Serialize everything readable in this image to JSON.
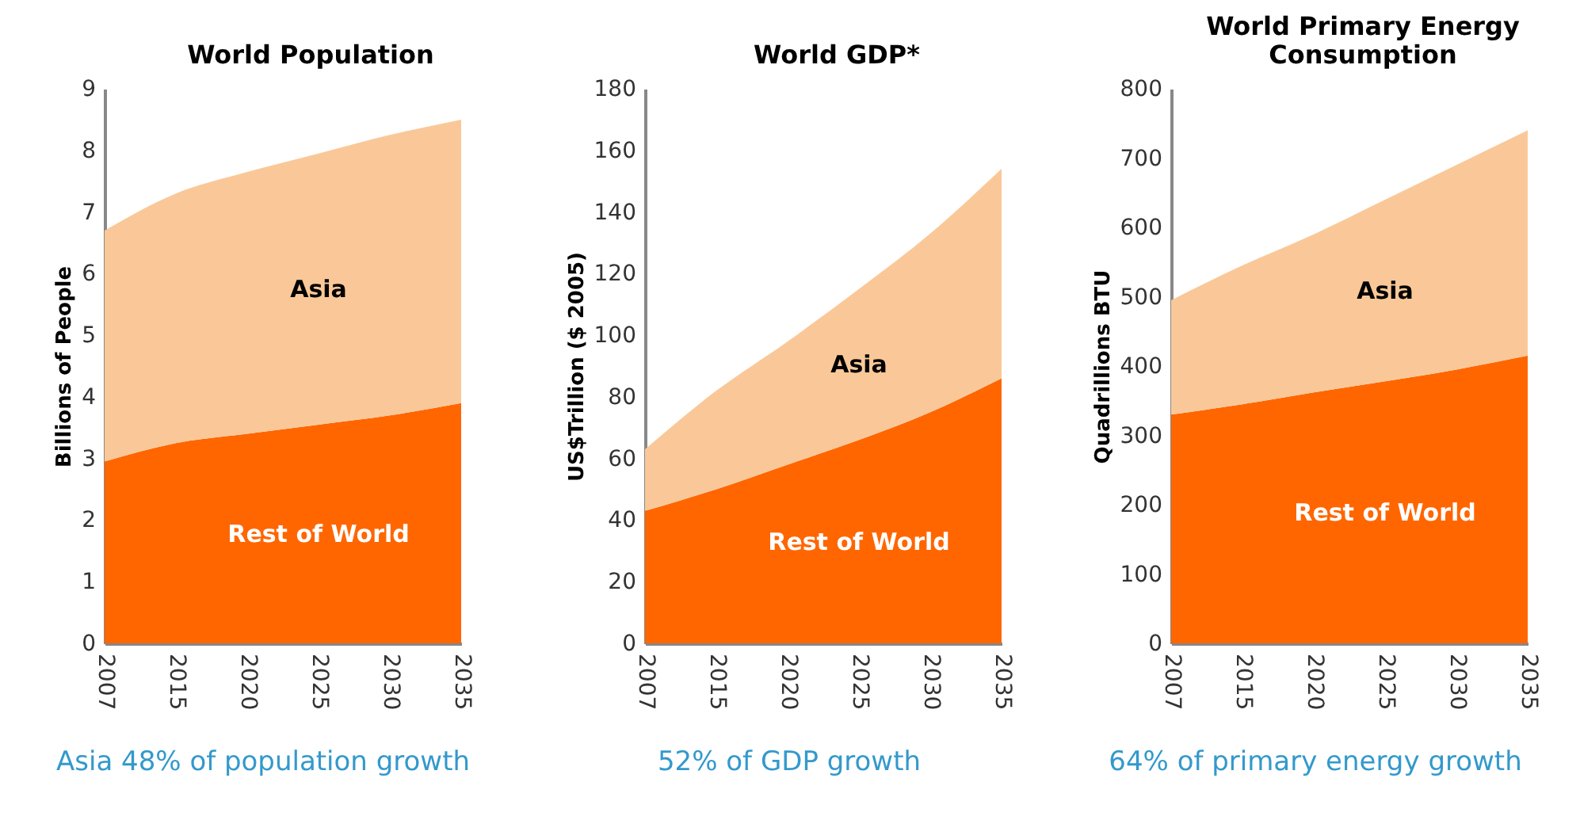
{
  "chart_data": [
    {
      "type": "area",
      "title": "World Population",
      "ylabel": "Billions of People",
      "categories": [
        "2007",
        "2015",
        "2020",
        "2025",
        "2030",
        "2035"
      ],
      "stacked": true,
      "ylim": [
        0,
        9
      ],
      "yticks": [
        0,
        1,
        2,
        3,
        4,
        5,
        6,
        7,
        8,
        9
      ],
      "grid": false,
      "annotations": [
        "Asia 48% of population growth"
      ],
      "series": [
        {
          "name": "Rest of World",
          "color": "#ff6600",
          "values": [
            2.95,
            3.25,
            3.4,
            3.55,
            3.7,
            3.9
          ]
        },
        {
          "name": "Asia",
          "color": "#fac898",
          "values": [
            3.75,
            4.05,
            4.25,
            4.4,
            4.55,
            4.6
          ]
        }
      ]
    },
    {
      "type": "area",
      "title": "World GDP*",
      "ylabel": "US$Trillion  ($ 2005)",
      "categories": [
        "2007",
        "2015",
        "2020",
        "2025",
        "2030",
        "2035"
      ],
      "stacked": true,
      "ylim": [
        0,
        180
      ],
      "yticks": [
        0,
        20,
        40,
        60,
        80,
        100,
        120,
        140,
        160,
        180
      ],
      "grid": false,
      "annotations": [
        "52% of GDP growth"
      ],
      "series": [
        {
          "name": "Rest of World",
          "color": "#ff6600",
          "values": [
            43,
            50,
            58,
            66,
            75,
            86
          ]
        },
        {
          "name": "Asia",
          "color": "#fac898",
          "values": [
            20,
            32,
            40,
            49,
            58,
            68
          ]
        }
      ]
    },
    {
      "type": "area",
      "title": "World Primary Energy Consumption",
      "ylabel": "Quadrillions BTU",
      "categories": [
        "2007",
        "2015",
        "2020",
        "2025",
        "2030",
        "2035"
      ],
      "stacked": true,
      "ylim": [
        0,
        800
      ],
      "yticks": [
        0,
        100,
        200,
        300,
        400,
        500,
        600,
        700,
        800
      ],
      "grid": false,
      "annotations": [
        "64% of primary energy growth"
      ],
      "series": [
        {
          "name": "Rest of World",
          "color": "#ff6600",
          "values": [
            330,
            345,
            362,
            378,
            395,
            415
          ]
        },
        {
          "name": "Asia",
          "color": "#fac898",
          "values": [
            165,
            200,
            228,
            262,
            295,
            325
          ]
        }
      ]
    }
  ]
}
